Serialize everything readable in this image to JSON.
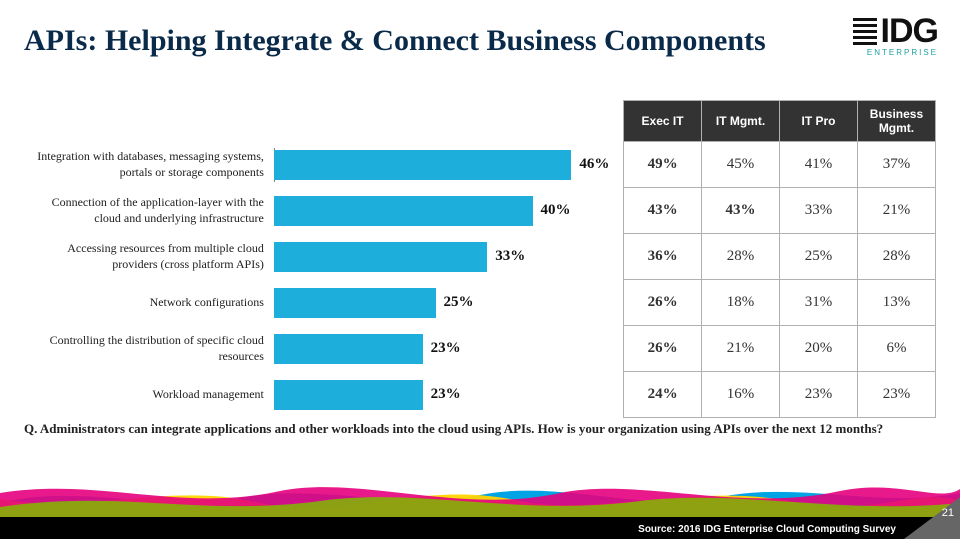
{
  "title": "APIs: Helping Integrate & Connect Business Components",
  "logo": {
    "text": "IDG",
    "sub": "ENTERPRISE"
  },
  "chart": {
    "type": "bar",
    "bar_color": "#1eaedb",
    "max_pct": 54,
    "columns": [
      "Exec IT",
      "IT Mgmt.",
      "IT Pro",
      "Business Mgmt."
    ],
    "rows": [
      {
        "label": "Integration with databases, messaging systems, portals or storage components",
        "bar": 46,
        "cells": [
          "49%",
          "45%",
          "41%",
          "37%"
        ]
      },
      {
        "label": "Connection of the application-layer with the cloud and underlying infrastructure",
        "bar": 40,
        "cells": [
          "43%",
          "43%",
          "33%",
          "21%"
        ]
      },
      {
        "label": "Accessing resources from multiple cloud providers (cross platform APIs)",
        "bar": 33,
        "cells": [
          "36%",
          "28%",
          "25%",
          "28%"
        ]
      },
      {
        "label": "Network configurations",
        "bar": 25,
        "cells": [
          "26%",
          "18%",
          "31%",
          "13%"
        ]
      },
      {
        "label": "Controlling the distribution of specific cloud resources",
        "bar": 23,
        "cells": [
          "26%",
          "21%",
          "20%",
          "6%"
        ]
      },
      {
        "label": "Workload management",
        "bar": 23,
        "cells": [
          "24%",
          "16%",
          "23%",
          "23%"
        ]
      }
    ],
    "bold_cells": [
      [
        0,
        0
      ],
      [
        1,
        0
      ],
      [
        1,
        1
      ],
      [
        2,
        0
      ],
      [
        3,
        0
      ],
      [
        4,
        0
      ],
      [
        5,
        0
      ]
    ]
  },
  "question": "Q. Administrators can integrate applications and other workloads into the cloud using APIs. How is your organization using APIs over the next 12 months?",
  "footer": {
    "source": "Source: 2016 IDG Enterprise Cloud Computing Survey",
    "page": "21"
  },
  "wave_colors": [
    "#e6007e",
    "#ffd500",
    "#00a4e4",
    "#7fba00",
    "#e2001a",
    "#f39200"
  ]
}
